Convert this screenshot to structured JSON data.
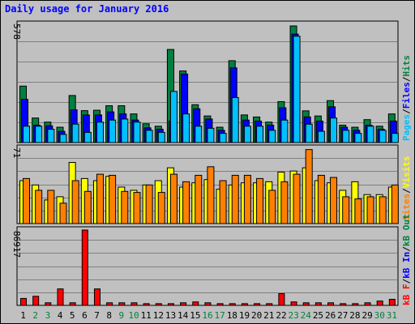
{
  "title": "Daily usage for January 2016",
  "colors": {
    "hits": "#008040",
    "files": "#0000ff",
    "pages": "#00c0ff",
    "visits": "#ffff00",
    "sites": "#ff8000",
    "kbin": "#0000ff",
    "kbout": "#008040",
    "kbf": "#ff0000",
    "weekday_label": "#000000",
    "weekend_label": "#008040"
  },
  "legend_top": {
    "pages": "Pages",
    "files": "Files",
    "hits": "Hits",
    "sep": "/"
  },
  "legend_mid": {
    "sites": "Sites",
    "visits": "Visits",
    "sep": "/"
  },
  "legend_bottom": {
    "kbf": "kB F",
    "kbin": "kB In",
    "kbout": "kB Out",
    "sep": "/"
  },
  "chart_data": [
    {
      "type": "bar",
      "panel": "hits-files-pages",
      "ytick_label": "578",
      "ylim": [
        0,
        578
      ],
      "grid": true,
      "categories": [
        "1",
        "2",
        "3",
        "4",
        "5",
        "6",
        "7",
        "8",
        "9",
        "10",
        "11",
        "12",
        "13",
        "14",
        "15",
        "16",
        "17",
        "18",
        "19",
        "20",
        "21",
        "22",
        "23",
        "24",
        "25",
        "26",
        "27",
        "28",
        "29",
        "30",
        "31"
      ],
      "weekend_days": [
        "2",
        "3",
        "9",
        "10",
        "16",
        "17",
        "23",
        "24",
        "30",
        "31"
      ],
      "series": [
        {
          "name": "Hits",
          "values": [
            276,
            120,
            100,
            75,
            230,
            156,
            158,
            180,
            180,
            140,
            92,
            80,
            455,
            350,
            185,
            130,
            75,
            400,
            135,
            125,
            100,
            200,
            570,
            155,
            130,
            205,
            85,
            75,
            112,
            80,
            140
          ]
        },
        {
          "name": "Files",
          "values": [
            211,
            85,
            82,
            55,
            160,
            135,
            135,
            150,
            140,
            110,
            72,
            65,
            105,
            335,
            165,
            115,
            60,
            365,
            110,
            105,
            85,
            170,
            530,
            125,
            105,
            175,
            75,
            60,
            85,
            65,
            105
          ]
        },
        {
          "name": "Pages",
          "values": [
            80,
            80,
            65,
            40,
            90,
            50,
            100,
            110,
            115,
            100,
            60,
            50,
            250,
            140,
            80,
            70,
            45,
            220,
            80,
            80,
            60,
            110,
            520,
            90,
            55,
            120,
            60,
            45,
            80,
            60,
            45
          ]
        }
      ]
    },
    {
      "type": "bar",
      "panel": "visits-sites",
      "ytick_label": "71",
      "ylim": [
        0,
        71
      ],
      "grid": true,
      "categories": [
        "1",
        "2",
        "3",
        "4",
        "5",
        "6",
        "7",
        "8",
        "9",
        "10",
        "11",
        "12",
        "13",
        "14",
        "15",
        "16",
        "17",
        "18",
        "19",
        "20",
        "21",
        "22",
        "23",
        "24",
        "25",
        "26",
        "27",
        "28",
        "29",
        "30",
        "31"
      ],
      "series": [
        {
          "name": "Visits",
          "values": [
            40,
            36,
            22,
            25,
            57,
            42,
            40,
            44,
            34,
            31,
            36,
            40,
            52,
            34,
            38,
            41,
            32,
            36,
            38,
            38,
            39,
            48,
            49,
            52,
            40,
            38,
            31,
            39,
            27,
            27,
            34
          ]
        },
        {
          "name": "Sites",
          "values": [
            42,
            31,
            31,
            19,
            40,
            30,
            46,
            45,
            30,
            29,
            36,
            29,
            46,
            39,
            45,
            53,
            40,
            45,
            45,
            42,
            31,
            39,
            46,
            69,
            45,
            43,
            25,
            23,
            25,
            25,
            36
          ]
        }
      ]
    },
    {
      "type": "bar",
      "panel": "kb-transfer",
      "ytick_label": "86917",
      "ylim": [
        0,
        86917
      ],
      "grid": true,
      "categories": [
        "1",
        "2",
        "3",
        "4",
        "5",
        "6",
        "7",
        "8",
        "9",
        "10",
        "11",
        "12",
        "13",
        "14",
        "15",
        "16",
        "17",
        "18",
        "19",
        "20",
        "21",
        "22",
        "23",
        "24",
        "25",
        "26",
        "27",
        "28",
        "29",
        "30",
        "31"
      ],
      "series": [
        {
          "name": "kB F",
          "values": [
            8000,
            10500,
            3000,
            19000,
            3000,
            86917,
            19000,
            3000,
            3000,
            3000,
            2000,
            2000,
            2000,
            3000,
            4000,
            3000,
            2000,
            2000,
            2000,
            2000,
            2000,
            13500,
            4000,
            3000,
            3000,
            3000,
            2000,
            2000,
            3000,
            5000,
            7000
          ]
        },
        {
          "name": "kB In",
          "values": [
            0,
            0,
            0,
            0,
            0,
            0,
            0,
            0,
            0,
            0,
            0,
            0,
            0,
            0,
            0,
            0,
            0,
            0,
            0,
            0,
            0,
            0,
            0,
            0,
            0,
            0,
            0,
            0,
            0,
            0,
            0
          ]
        },
        {
          "name": "kB Out",
          "values": [
            0,
            0,
            0,
            0,
            0,
            0,
            0,
            0,
            0,
            0,
            0,
            0,
            0,
            0,
            0,
            0,
            0,
            0,
            0,
            0,
            0,
            0,
            0,
            0,
            0,
            0,
            0,
            0,
            0,
            0,
            0
          ]
        }
      ]
    }
  ]
}
